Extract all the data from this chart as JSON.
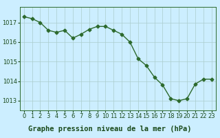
{
  "x": [
    0,
    1,
    2,
    3,
    4,
    5,
    6,
    7,
    8,
    9,
    10,
    11,
    12,
    13,
    14,
    15,
    16,
    17,
    18,
    19,
    20,
    21,
    22,
    23
  ],
  "y": [
    1017.3,
    1017.2,
    1017.0,
    1016.6,
    1016.5,
    1016.6,
    1016.2,
    1016.4,
    1016.65,
    1016.8,
    1016.8,
    1016.6,
    1016.4,
    1016.0,
    1015.15,
    1014.8,
    1014.2,
    1013.8,
    1013.1,
    1013.0,
    1013.1,
    1013.85,
    1014.1,
    1014.1
  ],
  "line_color": "#2d6a2d",
  "marker": "D",
  "marker_size": 2.5,
  "line_width": 1.0,
  "bg_color": "#cceeff",
  "grid_color": "#aacccc",
  "title": "Graphe pression niveau de la mer (hPa)",
  "ylim": [
    1012.5,
    1017.8
  ],
  "xlim": [
    -0.5,
    23.5
  ],
  "yticks": [
    1013,
    1014,
    1015,
    1016,
    1017
  ],
  "xtick_labels": [
    "0",
    "1",
    "2",
    "3",
    "4",
    "5",
    "6",
    "7",
    "8",
    "9",
    "10",
    "11",
    "12",
    "13",
    "14",
    "15",
    "16",
    "17",
    "18",
    "19",
    "20",
    "21",
    "22",
    "23"
  ],
  "tick_fontsize": 6.0,
  "title_fontsize": 7.5,
  "tick_color": "#1a4a1a",
  "spine_color": "#2d6a2d"
}
